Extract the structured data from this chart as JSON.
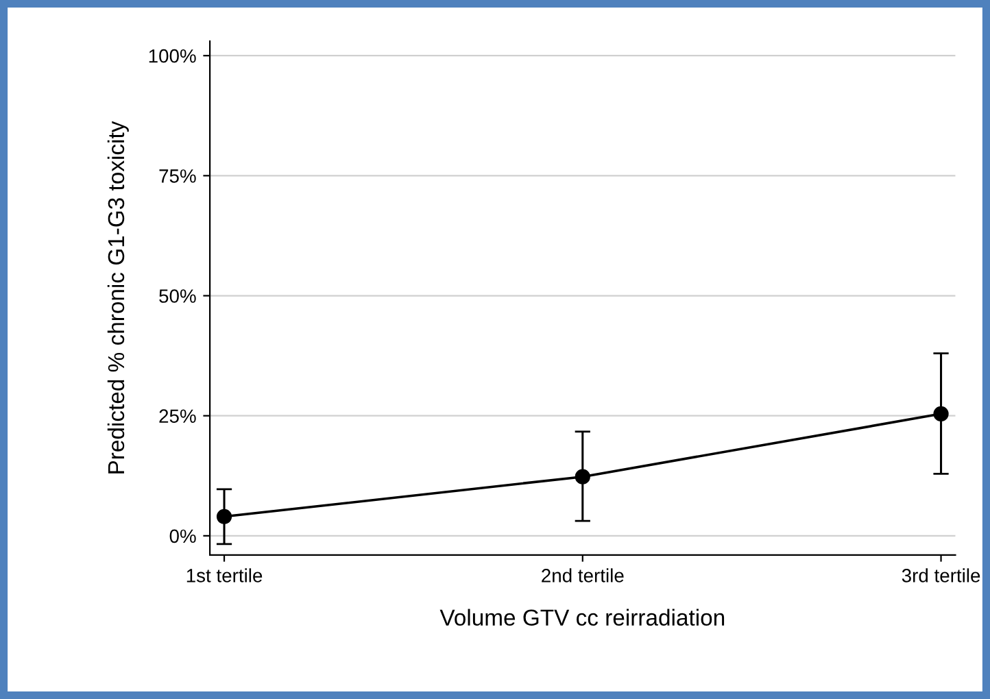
{
  "chart_data": {
    "type": "line",
    "xlabel": "Volume GTV cc reirradiation",
    "ylabel": "Predicted % chronic G1-G3 toxicity",
    "categories": [
      "1st tertile",
      "2nd tertile",
      "3rd tertile"
    ],
    "series": [
      {
        "color": "#000000",
        "values": [
          4.0,
          12.3,
          25.4
        ],
        "errors": [
          [
            -1.7,
            9.7
          ],
          [
            3.1,
            21.7
          ],
          [
            12.9,
            38.0
          ]
        ]
      }
    ],
    "ylim": [
      -4,
      103
    ],
    "yticks": [
      {
        "value": 0,
        "label": "0%"
      },
      {
        "value": 25,
        "label": "25%"
      },
      {
        "value": 50,
        "label": "50%"
      },
      {
        "value": 75,
        "label": "75%"
      },
      {
        "value": 100,
        "label": "100%"
      }
    ],
    "grid": "y",
    "marker": "circle",
    "line_style": "solid"
  }
}
